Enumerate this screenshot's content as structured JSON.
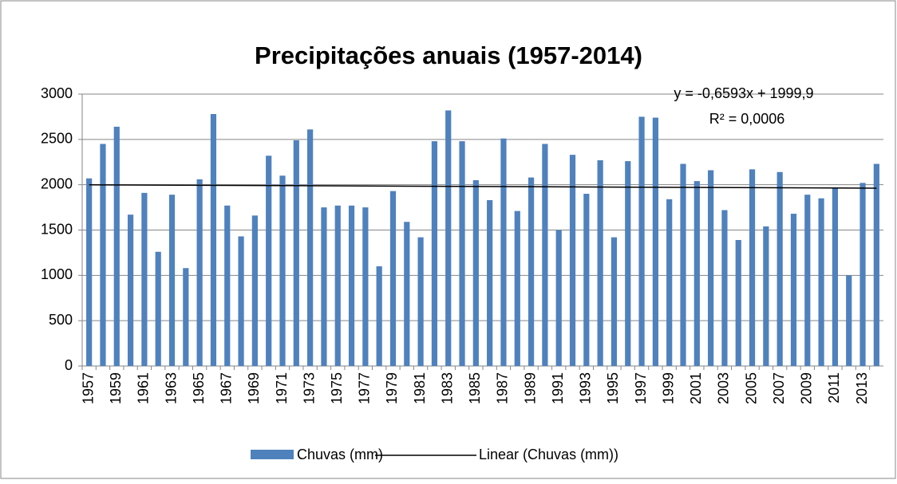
{
  "chart_data": {
    "type": "bar",
    "title": "Precipitações anuais (1957-2014)",
    "categories": [
      "1957",
      null,
      "1959",
      null,
      "1961",
      null,
      "1963",
      null,
      "1965",
      null,
      "1967",
      null,
      "1969",
      null,
      "1971",
      null,
      "1973",
      null,
      "1975",
      null,
      "1977",
      null,
      "1979",
      null,
      "1981",
      null,
      "1983",
      null,
      "1985",
      null,
      "1987",
      null,
      "1989",
      null,
      "1991",
      null,
      "1993",
      null,
      "1995",
      null,
      "1997",
      null,
      "1999",
      null,
      "2001",
      null,
      "2003",
      null,
      "2005",
      null,
      "2007",
      null,
      "2009",
      null,
      "2011",
      null,
      "2013",
      null
    ],
    "series": [
      {
        "name": "Chuvas (mm)",
        "color": "#4f81bd",
        "values": [
          2070,
          2450,
          2640,
          1670,
          1910,
          1260,
          1890,
          1080,
          2060,
          2780,
          1770,
          1430,
          1660,
          2320,
          2100,
          2490,
          2610,
          1750,
          1770,
          1770,
          1750,
          1100,
          1930,
          1590,
          1420,
          2480,
          2820,
          2480,
          2050,
          1830,
          2510,
          1710,
          2080,
          2450,
          1500,
          2330,
          1900,
          2270,
          1420,
          2260,
          2750,
          2740,
          1840,
          2230,
          2040,
          2160,
          1720,
          1390,
          2170,
          1540,
          2140,
          1680,
          1890,
          1850,
          1960,
          1000,
          2020,
          2230
        ]
      }
    ],
    "trendline": {
      "name": "Linear (Chuvas (mm))",
      "color": "#000000",
      "start": 1999.2,
      "end": 1961.7,
      "annotations": [
        "y = -0,6593x + 1999,9",
        "R² = 0,0006"
      ]
    },
    "ylim": [
      0,
      3000
    ],
    "yticks": [
      0,
      500,
      1000,
      1500,
      2000,
      2500,
      3000
    ],
    "grid": true,
    "legend": "bottom"
  }
}
